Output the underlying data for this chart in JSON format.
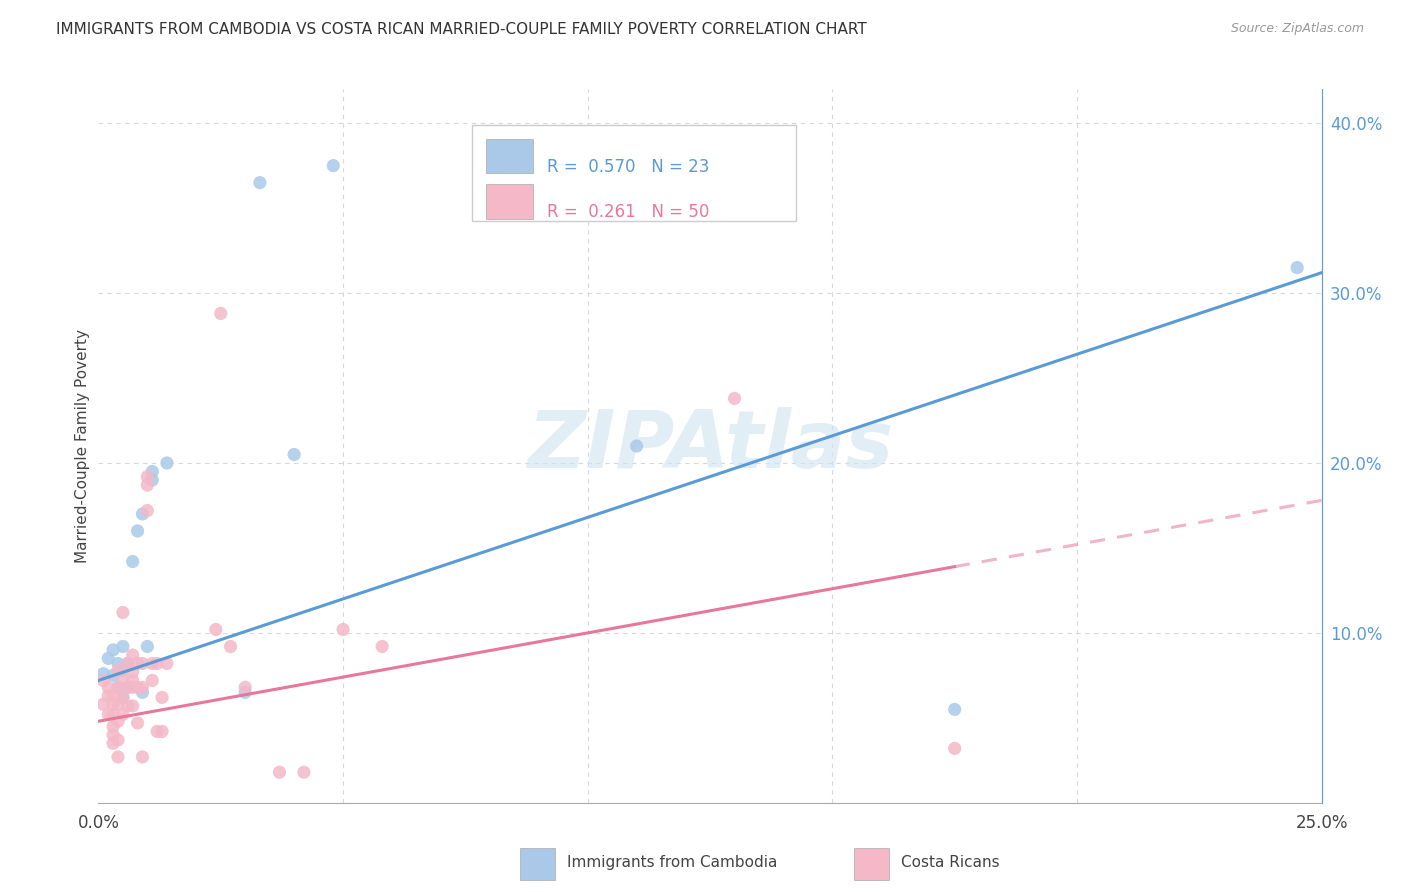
{
  "title": "IMMIGRANTS FROM CAMBODIA VS COSTA RICAN MARRIED-COUPLE FAMILY POVERTY CORRELATION CHART",
  "source": "Source: ZipAtlas.com",
  "ylabel": "Married-Couple Family Poverty",
  "xlim": [
    0.0,
    0.25
  ],
  "ylim": [
    0.0,
    0.42
  ],
  "color_blue": "#aac9e8",
  "color_pink": "#f4b8c8",
  "color_blue_line": "#5b9bd5",
  "color_pink_line": "#e8789a",
  "watermark": "ZIPAtlas",
  "blue_intercept": 0.072,
  "blue_slope": 0.96,
  "pink_intercept": 0.048,
  "pink_slope": 0.52,
  "blue_points": [
    [
      0.001,
      0.076
    ],
    [
      0.002,
      0.085
    ],
    [
      0.003,
      0.09
    ],
    [
      0.003,
      0.075
    ],
    [
      0.004,
      0.082
    ],
    [
      0.004,
      0.068
    ],
    [
      0.005,
      0.092
    ],
    [
      0.005,
      0.078
    ],
    [
      0.005,
      0.062
    ],
    [
      0.006,
      0.082
    ],
    [
      0.006,
      0.068
    ],
    [
      0.007,
      0.142
    ],
    [
      0.008,
      0.16
    ],
    [
      0.009,
      0.17
    ],
    [
      0.009,
      0.065
    ],
    [
      0.01,
      0.092
    ],
    [
      0.011,
      0.19
    ],
    [
      0.011,
      0.195
    ],
    [
      0.014,
      0.2
    ],
    [
      0.03,
      0.065
    ],
    [
      0.033,
      0.365
    ],
    [
      0.04,
      0.205
    ],
    [
      0.048,
      0.375
    ],
    [
      0.11,
      0.21
    ],
    [
      0.175,
      0.055
    ],
    [
      0.245,
      0.315
    ]
  ],
  "pink_points": [
    [
      0.001,
      0.058
    ],
    [
      0.001,
      0.072
    ],
    [
      0.002,
      0.063
    ],
    [
      0.002,
      0.068
    ],
    [
      0.002,
      0.052
    ],
    [
      0.003,
      0.063
    ],
    [
      0.003,
      0.058
    ],
    [
      0.003,
      0.052
    ],
    [
      0.003,
      0.045
    ],
    [
      0.003,
      0.04
    ],
    [
      0.003,
      0.035
    ],
    [
      0.004,
      0.078
    ],
    [
      0.004,
      0.068
    ],
    [
      0.004,
      0.058
    ],
    [
      0.004,
      0.048
    ],
    [
      0.004,
      0.037
    ],
    [
      0.004,
      0.027
    ],
    [
      0.005,
      0.112
    ],
    [
      0.005,
      0.072
    ],
    [
      0.005,
      0.062
    ],
    [
      0.005,
      0.052
    ],
    [
      0.006,
      0.082
    ],
    [
      0.006,
      0.068
    ],
    [
      0.006,
      0.057
    ],
    [
      0.007,
      0.087
    ],
    [
      0.007,
      0.077
    ],
    [
      0.007,
      0.072
    ],
    [
      0.007,
      0.068
    ],
    [
      0.007,
      0.057
    ],
    [
      0.008,
      0.082
    ],
    [
      0.008,
      0.068
    ],
    [
      0.008,
      0.047
    ],
    [
      0.009,
      0.082
    ],
    [
      0.009,
      0.068
    ],
    [
      0.009,
      0.027
    ],
    [
      0.01,
      0.192
    ],
    [
      0.01,
      0.187
    ],
    [
      0.01,
      0.172
    ],
    [
      0.011,
      0.082
    ],
    [
      0.011,
      0.072
    ],
    [
      0.012,
      0.082
    ],
    [
      0.012,
      0.042
    ],
    [
      0.013,
      0.062
    ],
    [
      0.013,
      0.042
    ],
    [
      0.014,
      0.082
    ],
    [
      0.024,
      0.102
    ],
    [
      0.025,
      0.288
    ],
    [
      0.027,
      0.092
    ],
    [
      0.03,
      0.068
    ],
    [
      0.037,
      0.018
    ],
    [
      0.042,
      0.018
    ],
    [
      0.05,
      0.102
    ],
    [
      0.058,
      0.092
    ],
    [
      0.13,
      0.238
    ],
    [
      0.175,
      0.032
    ]
  ],
  "background_color": "#ffffff",
  "grid_color": "#d8d8d8"
}
